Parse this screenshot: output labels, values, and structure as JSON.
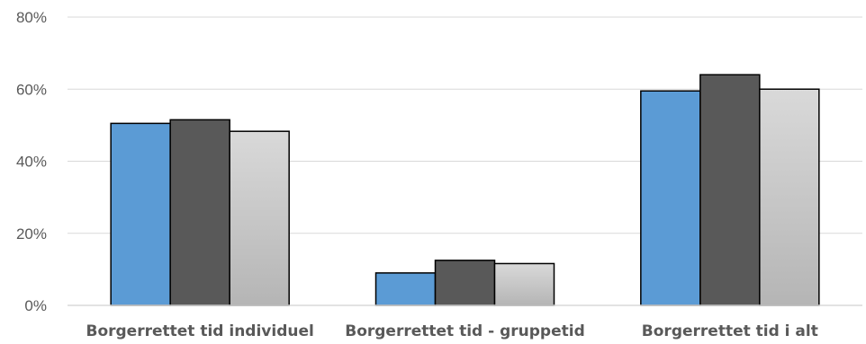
{
  "chart_data": {
    "type": "bar",
    "categories": [
      "Borgerrettet tid individuel",
      "Borgerrettet tid - gruppetid",
      "Borgerrettet tid i alt"
    ],
    "series": [
      {
        "values": [
          50.5,
          9.0,
          59.5
        ],
        "color": "#5b9bd5"
      },
      {
        "values": [
          51.5,
          12.5,
          64.0
        ],
        "color": "#595959"
      },
      {
        "values": [
          48.3,
          11.6,
          60.0
        ],
        "color": "#bfbfbf"
      }
    ],
    "ylim": [
      0,
      80
    ],
    "yticks": [
      "0%",
      "20%",
      "40%",
      "60%",
      "80%"
    ],
    "ytick_values": [
      0,
      20,
      40,
      60,
      80
    ],
    "grid": true,
    "legend": "none"
  }
}
